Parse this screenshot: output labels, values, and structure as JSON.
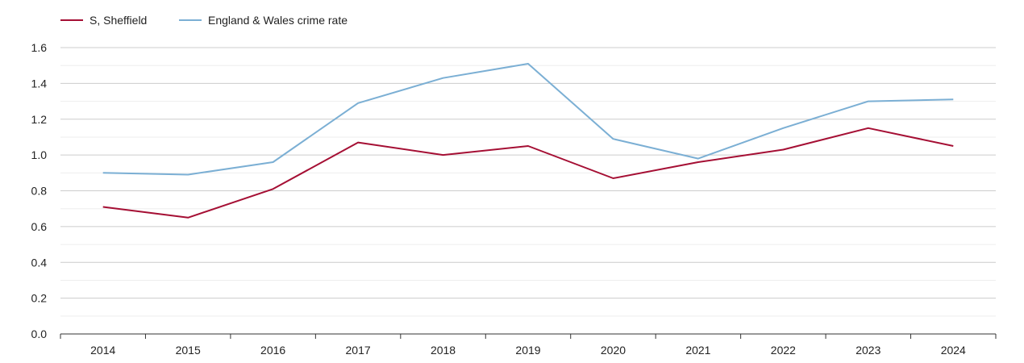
{
  "chart_data": {
    "type": "line",
    "title": "",
    "xlabel": "",
    "ylabel": "",
    "categories": [
      "2014",
      "2015",
      "2016",
      "2017",
      "2018",
      "2019",
      "2020",
      "2021",
      "2022",
      "2023",
      "2024"
    ],
    "y_ticks": [
      "0.0",
      "0.2",
      "0.4",
      "0.6",
      "0.8",
      "1.0",
      "1.2",
      "1.4",
      "1.6"
    ],
    "ylim": [
      0,
      1.6
    ],
    "minor_grid_step": 0.1,
    "legend_position": "top-left",
    "series": [
      {
        "name": "S, Sheffield",
        "color": "#a50f34",
        "values": [
          0.71,
          0.65,
          0.81,
          1.07,
          1.0,
          1.05,
          0.87,
          0.96,
          1.03,
          1.15,
          1.05
        ]
      },
      {
        "name": "England & Wales crime rate",
        "color": "#7bafd4",
        "values": [
          0.9,
          0.89,
          0.96,
          1.29,
          1.43,
          1.51,
          1.09,
          0.98,
          1.15,
          1.3,
          1.31
        ]
      }
    ]
  }
}
